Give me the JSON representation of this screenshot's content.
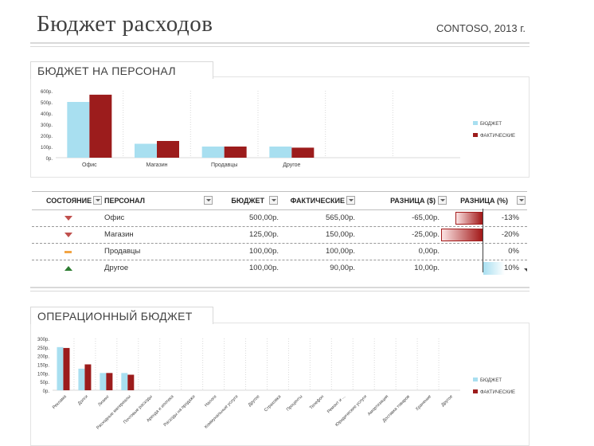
{
  "header": {
    "title": "Бюджет расходов",
    "company": "CONTOSO, 2013 г."
  },
  "colors": {
    "budget": "#a8dff0",
    "actual": "#9c1c1c",
    "accent_red": "#c0504d",
    "accent_green": "#2e7d32",
    "accent_orange": "#f2a444"
  },
  "personnel": {
    "title": "БЮДЖЕТ НА ПЕРСОНАЛ",
    "table": {
      "headers": {
        "status": "СОСТОЯНИЕ",
        "personnel": "ПЕРСОНАЛ",
        "budget": "БЮДЖЕТ",
        "actual": "ФАКТИЧЕСКИЕ",
        "diff_abs": "РАЗНИЦА ($)",
        "diff_pct": "РАЗНИЦА (%)"
      },
      "rows": [
        {
          "status": "down",
          "name": "Офис",
          "budget": "500,00р.",
          "actual": "565,00р.",
          "diff": "-65,00р.",
          "pct": "-13%",
          "pct_value": -0.13
        },
        {
          "status": "down",
          "name": "Магазин",
          "budget": "125,00р.",
          "actual": "150,00р.",
          "diff": "-25,00р.",
          "pct": "-20%",
          "pct_value": -0.2
        },
        {
          "status": "neutral",
          "name": "Продавцы",
          "budget": "100,00р.",
          "actual": "100,00р.",
          "diff": "0,00р.",
          "pct": "0%",
          "pct_value": 0
        },
        {
          "status": "up",
          "name": "Другое",
          "budget": "100,00р.",
          "actual": "90,00р.",
          "diff": "10,00р.",
          "pct": "10%",
          "pct_value": 0.1
        }
      ]
    }
  },
  "operational": {
    "title": "ОПЕРАЦИОННЫЙ БЮДЖЕТ"
  },
  "chart_data": [
    {
      "type": "bar",
      "categories": [
        "Офис",
        "Магазин",
        "Продавцы",
        "Другое",
        "",
        ""
      ],
      "series": [
        {
          "name": "БЮДЖЕТ",
          "values": [
            500,
            125,
            100,
            100,
            0,
            0
          ]
        },
        {
          "name": "ФАКТИЧЕСКИЕ",
          "values": [
            565,
            150,
            100,
            90,
            0,
            0
          ]
        }
      ],
      "yticks": [
        "0р.",
        "100р.",
        "200р.",
        "300р.",
        "400р.",
        "500р.",
        "600р."
      ],
      "ylim": [
        0,
        600
      ],
      "legend_position": "right"
    },
    {
      "type": "bar",
      "categories": [
        "Реклама",
        "Долги",
        "Лизинг",
        "Расходные материалы",
        "Почтовые расходы",
        "Аренда и ипотека",
        "Расходы на продажи",
        "Налоги",
        "Коммунальные услуги",
        "Другое",
        "Страховка",
        "Проценты",
        "Телефон",
        "Ремонт и ...",
        "Юридические услуги",
        "Амортизация",
        "Доставка товаров",
        "Хранение",
        "Другое"
      ],
      "series": [
        {
          "name": "БЮДЖЕТ",
          "values": [
            250,
            125,
            100,
            100,
            0,
            0,
            0,
            0,
            0,
            0,
            0,
            0,
            0,
            0,
            0,
            0,
            0,
            0,
            0
          ]
        },
        {
          "name": "ФАКТИЧЕСКИЕ",
          "values": [
            245,
            150,
            100,
            90,
            0,
            0,
            0,
            0,
            0,
            0,
            0,
            0,
            0,
            0,
            0,
            0,
            0,
            0,
            0
          ]
        }
      ],
      "yticks": [
        "0р.",
        "50р.",
        "100р.",
        "150р.",
        "200р.",
        "250р.",
        "300р."
      ],
      "ylim": [
        0,
        300
      ],
      "legend_position": "right"
    }
  ]
}
